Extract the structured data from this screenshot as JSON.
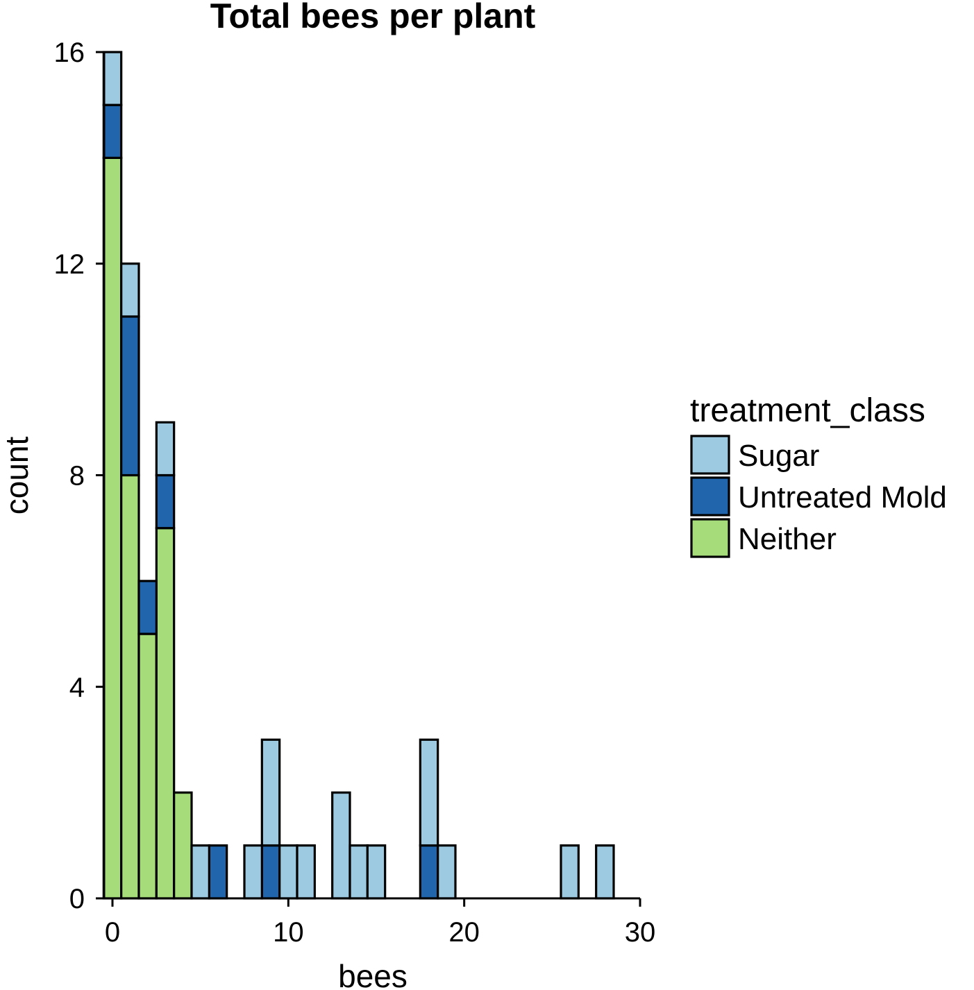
{
  "chart_data": {
    "type": "bar",
    "subtype": "stacked-histogram",
    "title": "Total bees per plant",
    "xlabel": "bees",
    "ylabel": "count",
    "xlim": [
      -0.5,
      30
    ],
    "ylim": [
      0,
      16
    ],
    "x_ticks": [
      0,
      10,
      20,
      30
    ],
    "y_ticks": [
      0,
      4,
      8,
      12,
      16
    ],
    "bin_width": 1,
    "grid": false,
    "legend": {
      "title": "treatment_class",
      "position": "right"
    },
    "series": [
      {
        "name": "Sugar",
        "color": "#9ecae1",
        "points": [
          [
            0,
            1
          ],
          [
            1,
            1
          ],
          [
            3,
            1
          ],
          [
            5,
            1
          ],
          [
            8,
            1
          ],
          [
            9,
            2
          ],
          [
            10,
            1
          ],
          [
            11,
            1
          ],
          [
            13,
            2
          ],
          [
            14,
            1
          ],
          [
            15,
            1
          ],
          [
            18,
            2
          ],
          [
            19,
            1
          ],
          [
            26,
            1
          ],
          [
            28,
            1
          ]
        ]
      },
      {
        "name": "Untreated Mold",
        "color": "#2166ac",
        "points": [
          [
            0,
            1
          ],
          [
            1,
            3
          ],
          [
            2,
            1
          ],
          [
            3,
            1
          ],
          [
            6,
            1
          ],
          [
            9,
            1
          ],
          [
            18,
            1
          ]
        ]
      },
      {
        "name": "Neither",
        "color": "#a6dc7a",
        "points": [
          [
            0,
            14
          ],
          [
            1,
            8
          ],
          [
            2,
            5
          ],
          [
            3,
            7
          ],
          [
            4,
            2
          ]
        ]
      }
    ]
  }
}
